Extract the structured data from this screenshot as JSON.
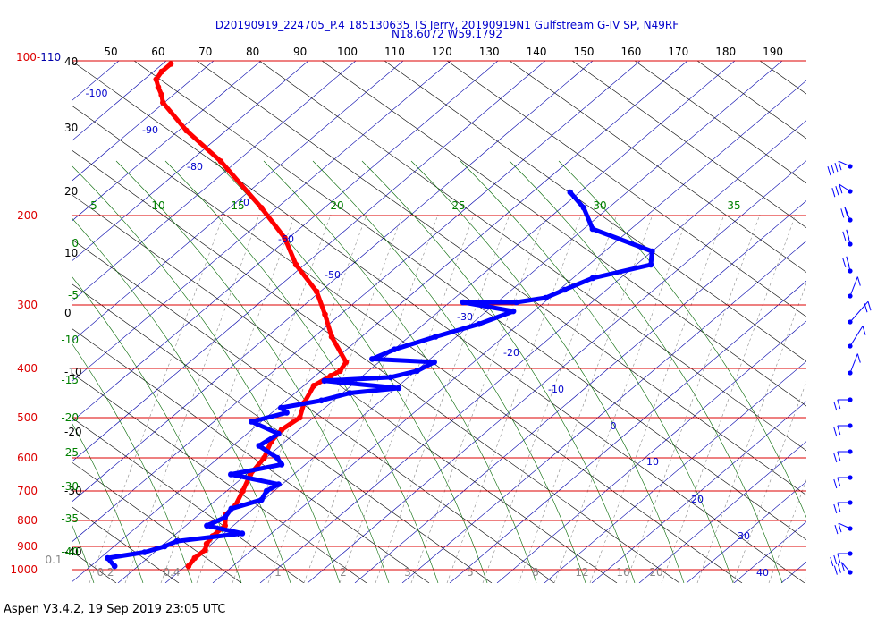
{
  "header": {
    "title_line1": "D20190919_224705_P.4 185130635 TS Jerry, 20190919N1 Gulfstream G-IV SP, N49RF",
    "title_line2": "N18.6072 W59.1792"
  },
  "footer": {
    "text": "Aspen V3.4.2, 19 Sep 2019  23:05 UTC"
  },
  "chart_data": {
    "type": "scatter",
    "title": "",
    "temperature_tick_labels": [
      "40",
      "30",
      "20",
      "10",
      "0",
      "-10",
      "-20",
      "-30",
      "-40"
    ],
    "temperature_ticks": [
      40,
      30,
      20,
      10,
      0,
      -10,
      -20,
      -30,
      -40
    ],
    "pressure_levels": [
      {
        "label": "100-110",
        "value": 100
      },
      {
        "label": "200",
        "value": 200
      },
      {
        "label": "300",
        "value": 300
      },
      {
        "label": "400",
        "value": 400
      },
      {
        "label": "500",
        "value": 500
      },
      {
        "label": "600",
        "value": 600
      },
      {
        "label": "700",
        "value": 700
      },
      {
        "label": "800",
        "value": 800
      },
      {
        "label": "900",
        "value": 900
      },
      {
        "label": "1000",
        "value": 1000
      }
    ],
    "top_scale_labels": [
      "50",
      "60",
      "70",
      "80",
      "90",
      "100",
      "110",
      "120",
      "130",
      "140",
      "150",
      "160",
      "170",
      "180",
      "190"
    ],
    "theta_labels": [
      "-100",
      "-90",
      "-80",
      "-70",
      "-60",
      "-50",
      "-30",
      "-20",
      "-10",
      "0",
      "10",
      "20",
      "30",
      "40"
    ],
    "mixing_ratio_labels": [
      "0.1",
      "0.2",
      "0.4",
      "1",
      "2",
      "3",
      "5",
      "8",
      "12",
      "16",
      "20"
    ],
    "theta_e_top_labels": [
      "5",
      "10",
      "15",
      "20",
      "25",
      "30",
      "35"
    ],
    "theta_e_left_labels": [
      "0",
      "-5",
      "-10",
      "-15",
      "-20",
      "-25",
      "-30",
      "-35",
      "-40"
    ],
    "series": [
      {
        "name": "",
        "color": "#ff0000",
        "points": [
          [
            102,
            23
          ],
          [
            107,
            19.8
          ],
          [
            112,
            17.2
          ],
          [
            117,
            15.8
          ],
          [
            122,
            14.6
          ],
          [
            127,
            13.1
          ],
          [
            145,
            10.6
          ],
          [
            165,
            9.2
          ],
          [
            195,
            5.3
          ],
          [
            225,
            2.3
          ],
          [
            255,
            -1.9
          ],
          [
            285,
            -4.6
          ],
          [
            315,
            -8.4
          ],
          [
            350,
            -12.3
          ],
          [
            390,
            -15.7
          ],
          [
            405,
            -18.6
          ],
          [
            415,
            -21.2
          ],
          [
            435,
            -26.1
          ],
          [
            470,
            -31.5
          ],
          [
            500,
            -35.5
          ],
          [
            530,
            -41.1
          ],
          [
            560,
            -45.5
          ],
          [
            600,
            -50.2
          ],
          [
            650,
            -56.1
          ],
          [
            700,
            -61.0
          ],
          [
            750,
            -65.5
          ],
          [
            780,
            -69.0
          ],
          [
            820,
            -71.6
          ],
          [
            860,
            -75.9
          ],
          [
            890,
            -78.6
          ],
          [
            915,
            -80.2
          ],
          [
            950,
            -83.7
          ],
          [
            985,
            -86.5
          ]
        ]
      },
      {
        "name": "",
        "color": "#0000ff",
        "points": [
          [
            185,
            58.1
          ],
          [
            195,
            56.8
          ],
          [
            215,
            53.5
          ],
          [
            240,
            58
          ],
          [
            255,
            54.8
          ],
          [
            270,
            42.5
          ],
          [
            283,
            35.4
          ],
          [
            292,
            30.6
          ],
          [
            297,
            24.9
          ],
          [
            297,
            16.4
          ],
          [
            310,
            22.4
          ],
          [
            330,
            14.1
          ],
          [
            350,
            4.3
          ],
          [
            370,
            -5.1
          ],
          [
            385,
            -10.8
          ],
          [
            390,
            -1.6
          ],
          [
            405,
            -6.3
          ],
          [
            418,
            -12.0
          ],
          [
            425,
            -23.3
          ],
          [
            440,
            -13.1
          ],
          [
            450,
            -22.0
          ],
          [
            465,
            -28.2
          ],
          [
            480,
            -36.3
          ],
          [
            490,
            -36.5
          ],
          [
            510,
            -44.1
          ],
          [
            540,
            -42.5
          ],
          [
            570,
            -48.3
          ],
          [
            600,
            -48.1
          ],
          [
            620,
            -48.9
          ],
          [
            650,
            -59.2
          ],
          [
            680,
            -53.8
          ],
          [
            700,
            -57.2
          ],
          [
            730,
            -60.0
          ],
          [
            760,
            -66.8
          ],
          [
            790,
            -69.8
          ],
          [
            820,
            -74.5
          ],
          [
            850,
            -70.6
          ],
          [
            880,
            -82.8
          ],
          [
            900,
            -85.9
          ],
          [
            925,
            -90.4
          ],
          [
            950,
            -97.6
          ],
          [
            985,
            -98.3
          ]
        ]
      }
    ],
    "wind_barbs": {
      "color": "#0000ff",
      "levels": [
        {
          "y": 186,
          "dir": 255,
          "kt": 35
        },
        {
          "y": 214,
          "dir": 250,
          "kt": 30
        },
        {
          "y": 246,
          "dir": 230,
          "kt": 20
        },
        {
          "y": 273,
          "dir": 225,
          "kt": 20
        },
        {
          "y": 303,
          "dir": 225,
          "kt": 15
        },
        {
          "y": 331,
          "dir": 200,
          "kt": 10
        },
        {
          "y": 360,
          "dir": 180,
          "kt": 15
        },
        {
          "y": 387,
          "dir": 190,
          "kt": 10
        },
        {
          "y": 417,
          "dir": 200,
          "kt": 10
        },
        {
          "y": 447,
          "dir": 270,
          "kt": 20
        },
        {
          "y": 476,
          "dir": 270,
          "kt": 20
        },
        {
          "y": 505,
          "dir": 270,
          "kt": 20
        },
        {
          "y": 534,
          "dir": 270,
          "kt": 20
        },
        {
          "y": 562,
          "dir": 270,
          "kt": 20
        },
        {
          "y": 591,
          "dir": 285,
          "kt": 20
        },
        {
          "y": 619,
          "dir": 270,
          "kt": 25
        },
        {
          "y": 640,
          "dir": 240,
          "kt": 30
        }
      ]
    }
  }
}
